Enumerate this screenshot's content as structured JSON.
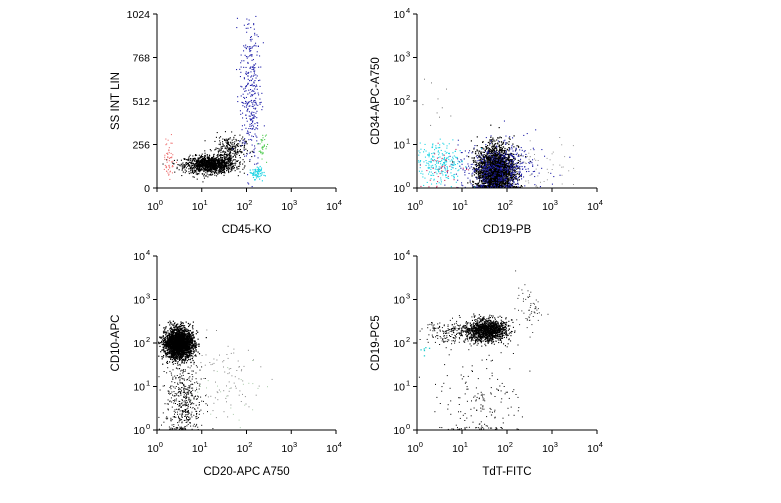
{
  "chart_data": [
    {
      "type": "scatter",
      "xlabel": "CD45-KO",
      "ylabel": "SS INT LIN",
      "x_scale": "log",
      "y_scale": "linear",
      "xlim": [
        1,
        10000
      ],
      "ylim": [
        0,
        1024
      ],
      "x_ticks": [
        {
          "v": 1,
          "m": "10",
          "e": "0"
        },
        {
          "v": 10,
          "m": "10",
          "e": "1"
        },
        {
          "v": 100,
          "m": "10",
          "e": "2"
        },
        {
          "v": 1000,
          "m": "10",
          "e": "3"
        },
        {
          "v": 10000,
          "m": "10",
          "e": "4"
        }
      ],
      "y_ticks": [
        {
          "v": 0,
          "m": "0",
          "e": ""
        },
        {
          "v": 256,
          "m": "256",
          "e": ""
        },
        {
          "v": 512,
          "m": "512",
          "e": ""
        },
        {
          "v": 768,
          "m": "768",
          "e": ""
        },
        {
          "v": 1024,
          "m": "1024",
          "e": ""
        }
      ],
      "populations": [
        {
          "color": "#000000",
          "cx": 15,
          "cy": 140,
          "sx": 0.28,
          "sy": 25,
          "n": 1300,
          "size": 1.1
        },
        {
          "color": "#000000",
          "cx": 40,
          "cy": 230,
          "sx": 0.18,
          "sy": 40,
          "n": 250,
          "size": 1.1
        },
        {
          "color": "#2222aa",
          "cx": 120,
          "cy": 580,
          "sx": 0.12,
          "sy": 230,
          "n": 330,
          "size": 1.1
        },
        {
          "color": "#55cc55",
          "cx": 220,
          "cy": 250,
          "sx": 0.08,
          "sy": 50,
          "n": 35,
          "size": 1.1
        },
        {
          "color": "#22d4e4",
          "cx": 170,
          "cy": 90,
          "sx": 0.06,
          "sy": 22,
          "n": 70,
          "size": 1.2
        },
        {
          "color": "#ee7777",
          "cx": 1.8,
          "cy": 180,
          "sx": 0.07,
          "sy": 60,
          "n": 55,
          "size": 1.1
        }
      ]
    },
    {
      "type": "scatter",
      "xlabel": "CD19-PB",
      "ylabel": "CD34-APC-A750",
      "x_scale": "log",
      "y_scale": "log",
      "xlim": [
        1,
        10000
      ],
      "ylim": [
        1,
        10000
      ],
      "x_ticks": [
        {
          "v": 1,
          "m": "10",
          "e": "0"
        },
        {
          "v": 10,
          "m": "10",
          "e": "1"
        },
        {
          "v": 100,
          "m": "10",
          "e": "2"
        },
        {
          "v": 1000,
          "m": "10",
          "e": "3"
        },
        {
          "v": 10000,
          "m": "10",
          "e": "4"
        }
      ],
      "y_ticks": [
        {
          "v": 1,
          "m": "10",
          "e": "0"
        },
        {
          "v": 10,
          "m": "10",
          "e": "1"
        },
        {
          "v": 100,
          "m": "10",
          "e": "2"
        },
        {
          "v": 1000,
          "m": "10",
          "e": "3"
        },
        {
          "v": 10000,
          "m": "10",
          "e": "4"
        }
      ],
      "populations": [
        {
          "color": "#000000",
          "cx": 55,
          "cy": 2.5,
          "sx": 0.2,
          "sy": 0.28,
          "n": 2400,
          "size": 1.2
        },
        {
          "color": "#2222aa",
          "cx": 60,
          "cy": 3,
          "sx": 0.42,
          "sy": 0.3,
          "n": 500,
          "size": 1.1
        },
        {
          "color": "#22d4e4",
          "cx": 3,
          "cy": 4,
          "sx": 0.25,
          "sy": 0.25,
          "n": 230,
          "size": 1.1
        },
        {
          "color": "#cc3366",
          "cx": 4,
          "cy": 2.5,
          "sx": 0.3,
          "sy": 0.25,
          "n": 40,
          "size": 1.1
        },
        {
          "color": "#999999",
          "cx": 400,
          "cy": 3,
          "sx": 0.45,
          "sy": 0.3,
          "n": 60,
          "size": 1
        },
        {
          "color": "#777777",
          "cx": 3,
          "cy": 100,
          "sx": 0.2,
          "sy": 0.35,
          "n": 10,
          "size": 1
        }
      ]
    },
    {
      "type": "scatter",
      "xlabel": "CD20-APC A750",
      "ylabel": "CD10-APC",
      "x_scale": "log",
      "y_scale": "log",
      "xlim": [
        1,
        10000
      ],
      "ylim": [
        1,
        10000
      ],
      "x_ticks": [
        {
          "v": 1,
          "m": "10",
          "e": "0"
        },
        {
          "v": 10,
          "m": "10",
          "e": "1"
        },
        {
          "v": 100,
          "m": "10",
          "e": "2"
        },
        {
          "v": 1000,
          "m": "10",
          "e": "3"
        },
        {
          "v": 10000,
          "m": "10",
          "e": "4"
        }
      ],
      "y_ticks": [
        {
          "v": 1,
          "m": "10",
          "e": "0"
        },
        {
          "v": 10,
          "m": "10",
          "e": "1"
        },
        {
          "v": 100,
          "m": "10",
          "e": "2"
        },
        {
          "v": 1000,
          "m": "10",
          "e": "3"
        },
        {
          "v": 10000,
          "m": "10",
          "e": "4"
        }
      ],
      "populations": [
        {
          "color": "#000000",
          "cx": 3,
          "cy": 100,
          "sx": 0.16,
          "sy": 0.17,
          "n": 2300,
          "size": 1.2
        },
        {
          "color": "#000000",
          "cx": 4,
          "cy": 5,
          "sx": 0.2,
          "sy": 0.45,
          "n": 450,
          "size": 1
        },
        {
          "color": "#888888",
          "cx": 25,
          "cy": 15,
          "sx": 0.45,
          "sy": 0.5,
          "n": 90,
          "size": 1
        },
        {
          "color": "#aaccaa",
          "cx": 40,
          "cy": 8,
          "sx": 0.4,
          "sy": 0.4,
          "n": 25,
          "size": 1
        }
      ]
    },
    {
      "type": "scatter",
      "xlabel": "TdT-FITC",
      "ylabel": "CD19-PC5",
      "x_scale": "log",
      "y_scale": "log",
      "xlim": [
        1,
        10000
      ],
      "ylim": [
        1,
        10000
      ],
      "x_ticks": [
        {
          "v": 1,
          "m": "10",
          "e": "0"
        },
        {
          "v": 10,
          "m": "10",
          "e": "1"
        },
        {
          "v": 100,
          "m": "10",
          "e": "2"
        },
        {
          "v": 1000,
          "m": "10",
          "e": "3"
        },
        {
          "v": 10000,
          "m": "10",
          "e": "4"
        }
      ],
      "y_ticks": [
        {
          "v": 1,
          "m": "10",
          "e": "0"
        },
        {
          "v": 10,
          "m": "10",
          "e": "1"
        },
        {
          "v": 100,
          "m": "10",
          "e": "2"
        },
        {
          "v": 1000,
          "m": "10",
          "e": "3"
        },
        {
          "v": 10000,
          "m": "10",
          "e": "4"
        }
      ],
      "populations": [
        {
          "color": "#000000",
          "cx": 35,
          "cy": 200,
          "sx": 0.22,
          "sy": 0.12,
          "n": 1300,
          "size": 1.1
        },
        {
          "color": "#000000",
          "cx": 8,
          "cy": 180,
          "sx": 0.35,
          "sy": 0.15,
          "n": 250,
          "size": 1
        },
        {
          "color": "#000000",
          "cx": 25,
          "cy": 5,
          "sx": 0.45,
          "sy": 0.6,
          "n": 180,
          "size": 1
        },
        {
          "color": "#333333",
          "cx": 300,
          "cy": 600,
          "sx": 0.15,
          "sy": 0.25,
          "n": 60,
          "size": 1
        },
        {
          "color": "#22cccc",
          "cx": 1.5,
          "cy": 70,
          "sx": 0.05,
          "sy": 0.1,
          "n": 6,
          "size": 1.3
        }
      ]
    }
  ]
}
